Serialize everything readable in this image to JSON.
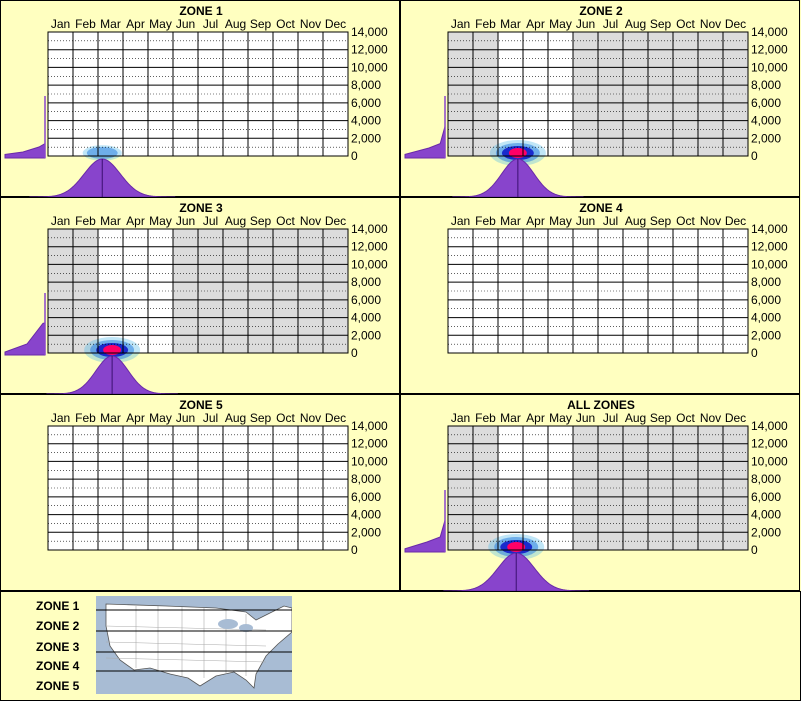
{
  "months": [
    "Jan",
    "Feb",
    "Mar",
    "Apr",
    "May",
    "Jun",
    "Jul",
    "Aug",
    "Sep",
    "Oct",
    "Nov",
    "Dec"
  ],
  "y_ticks": [
    "14,000",
    "12,000",
    "10,000",
    "8,000",
    "6,000",
    "4,000",
    "2,000",
    "0"
  ],
  "colors": {
    "background": "#ffffc0",
    "observed_month_fill": "#dcdcdc",
    "distribution": "#8844cc",
    "density_core": "#ff0066",
    "density_edge": "#4ab8e8"
  },
  "chart_data": [
    {
      "type": "heatmap",
      "title": "ZONE 1",
      "ylim": [
        0,
        14000
      ],
      "grey_months": [],
      "peak_day": 66,
      "peak_elev": 0,
      "timeline_sigma": 10,
      "density": 0.25,
      "elev_profile": [
        [
          0,
          0.18
        ],
        [
          0.45,
          0.3
        ],
        [
          0.85,
          0.55
        ],
        [
          1,
          0.72
        ]
      ]
    },
    {
      "type": "heatmap",
      "title": "ZONE 2",
      "ylim": [
        0,
        14000
      ],
      "grey_months": [
        0,
        1,
        5,
        6,
        7,
        8,
        9,
        10,
        11
      ],
      "peak_day": 85,
      "peak_elev": 0,
      "timeline_sigma": 9,
      "density": 1,
      "elev_profile": [
        [
          0,
          0.18
        ],
        [
          0.6,
          0.5
        ],
        [
          0.88,
          0.72
        ],
        [
          1,
          0.99
        ]
      ]
    },
    {
      "type": "heatmap",
      "title": "ZONE 3",
      "ylim": [
        0,
        14000
      ],
      "grey_months": [
        0,
        1,
        5,
        6,
        7,
        8,
        9,
        10,
        11
      ],
      "peak_day": 78,
      "peak_elev": 0,
      "timeline_sigma": 9,
      "density": 1,
      "elev_profile": [
        [
          0,
          0.15
        ],
        [
          0.55,
          0.55
        ],
        [
          0.95,
          0.99
        ],
        [
          1,
          1
        ]
      ]
    },
    {
      "type": "heatmap",
      "title": "ZONE 4",
      "ylim": [
        0,
        14000
      ],
      "grey_months": [],
      "peak_day": null,
      "peak_elev": null,
      "timeline_sigma": 0,
      "density": 0,
      "elev_profile": []
    },
    {
      "type": "heatmap",
      "title": "ZONE 5",
      "ylim": [
        0,
        14000
      ],
      "grey_months": [],
      "peak_day": null,
      "peak_elev": null,
      "timeline_sigma": 0,
      "density": 0,
      "elev_profile": []
    },
    {
      "type": "heatmap",
      "title": "ALL ZONES",
      "ylim": [
        0,
        14000
      ],
      "grey_months": [
        0,
        1,
        5,
        6,
        7,
        8,
        9,
        10,
        11
      ],
      "peak_day": 83,
      "peak_elev": 0,
      "timeline_sigma": 10,
      "density": 1,
      "elev_profile": [
        [
          0,
          0.16
        ],
        [
          0.55,
          0.5
        ],
        [
          0.88,
          0.75
        ],
        [
          1,
          0.99
        ]
      ]
    }
  ],
  "zone_legend": [
    "ZONE 1",
    "ZONE 2",
    "ZONE 3",
    "ZONE 4",
    "ZONE 5"
  ],
  "map": {
    "water": "#a8bcd4",
    "land": "#ffffff"
  }
}
